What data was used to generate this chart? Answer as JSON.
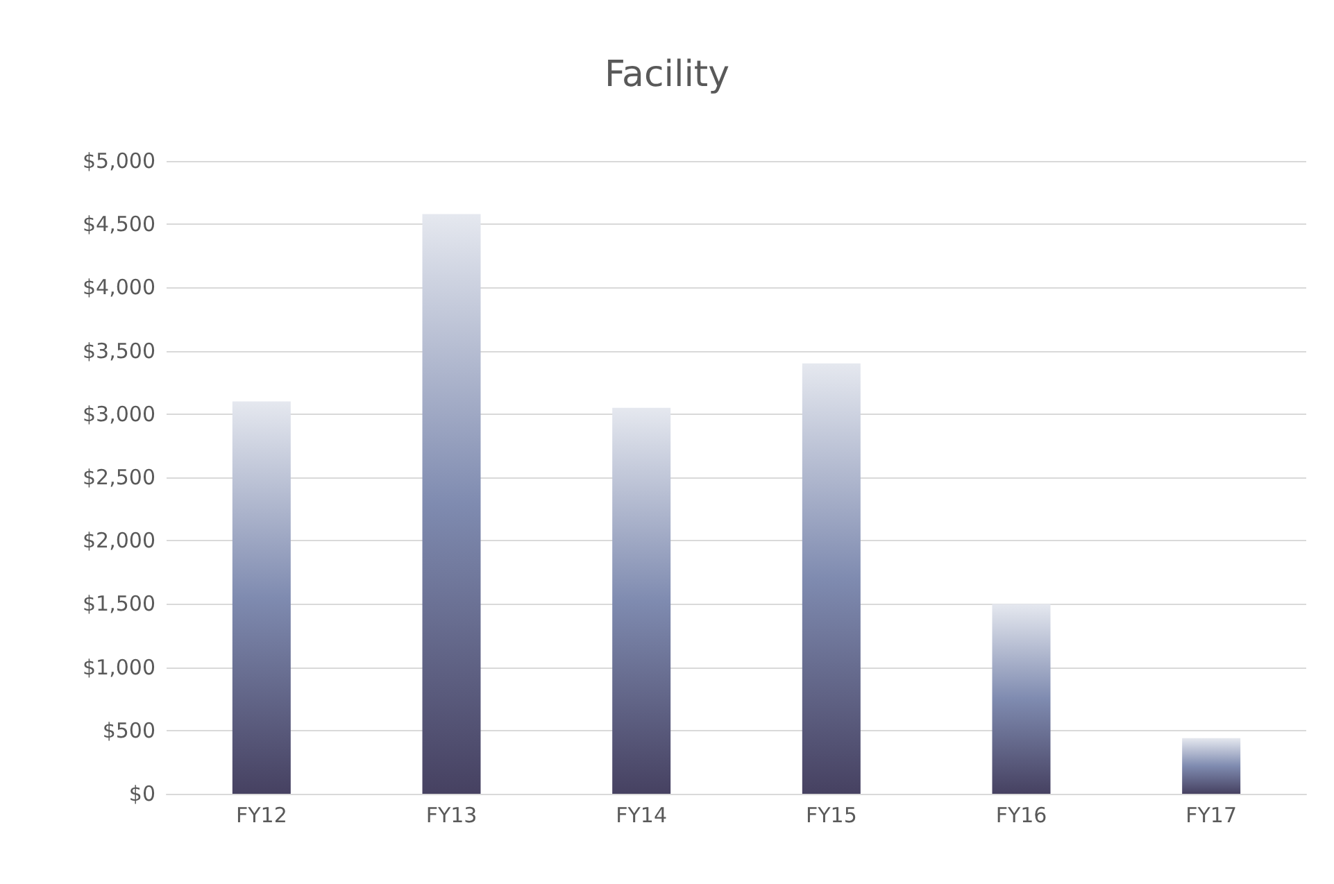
{
  "chart_data": {
    "type": "bar",
    "title": "Facility",
    "categories": [
      "FY12",
      "FY13",
      "FY14",
      "FY15",
      "FY16",
      "FY17"
    ],
    "values": [
      3100,
      4580,
      3050,
      3400,
      1500,
      440
    ],
    "color": "#7f8bb0",
    "ylim": [
      0,
      5000
    ],
    "yticks": [
      {
        "value": 0,
        "label": "$0"
      },
      {
        "value": 500,
        "label": "$500"
      },
      {
        "value": 1000,
        "label": "$1,000"
      },
      {
        "value": 1500,
        "label": "$1,500"
      },
      {
        "value": 2000,
        "label": "$2,000"
      },
      {
        "value": 2500,
        "label": "$2,500"
      },
      {
        "value": 3000,
        "label": "$3,000"
      },
      {
        "value": 3500,
        "label": "$3,500"
      },
      {
        "value": 4000,
        "label": "$4,000"
      },
      {
        "value": 4500,
        "label": "$4,500"
      },
      {
        "value": 5000,
        "label": "$5,000"
      }
    ],
    "grid": true
  }
}
